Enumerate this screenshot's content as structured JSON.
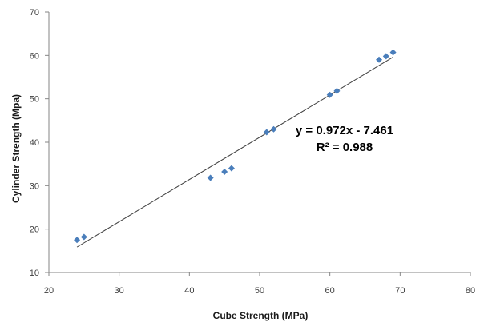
{
  "chart_data": {
    "type": "scatter",
    "title": "",
    "xlabel": "Cube Strength (MPa)",
    "ylabel": "Cylinder Strength (Mpa)",
    "xlim": [
      20,
      80
    ],
    "ylim": [
      10,
      70
    ],
    "xticks": [
      "20",
      "30",
      "40",
      "50",
      "60",
      "70",
      "80"
    ],
    "yticks": [
      "10",
      "20",
      "30",
      "40",
      "50",
      "60",
      "70"
    ],
    "grid": false,
    "legend": "none",
    "marker": "diamond",
    "marker_color": "#4A7EBB",
    "series": [
      {
        "points": [
          {
            "x": 24,
            "y": 17.5
          },
          {
            "x": 25,
            "y": 18.2
          },
          {
            "x": 43,
            "y": 31.8
          },
          {
            "x": 45,
            "y": 33.2
          },
          {
            "x": 46,
            "y": 34.0
          },
          {
            "x": 51,
            "y": 42.3
          },
          {
            "x": 52,
            "y": 43.0
          },
          {
            "x": 60,
            "y": 50.9
          },
          {
            "x": 61,
            "y": 51.8
          },
          {
            "x": 67,
            "y": 59.0
          },
          {
            "x": 68,
            "y": 59.8
          },
          {
            "x": 69,
            "y": 60.7
          }
        ]
      }
    ],
    "trendline": {
      "type": "linear",
      "slope": 0.972,
      "intercept": -7.461,
      "x_range": [
        24,
        69
      ],
      "color": "#404040",
      "equation_text": "y = 0.972x - 7.461",
      "r2_text": "R² = 0.988"
    }
  }
}
